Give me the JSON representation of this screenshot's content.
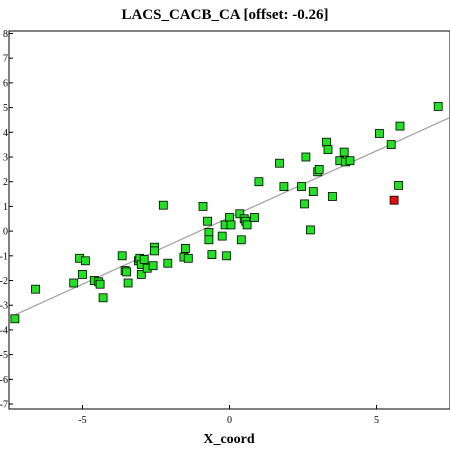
{
  "chart_data": {
    "type": "scatter",
    "title": "LACS_CACB_CA [offset: -0.26]",
    "xlabel": "X_coord",
    "ylabel": "",
    "xlim": [
      -7.5,
      7.5
    ],
    "ylim": [
      -7.2,
      8.1
    ],
    "x_ticks": [
      -5,
      0,
      5
    ],
    "x_tick_labels": [
      "-5",
      "0",
      "5"
    ],
    "y_ticks": [
      -7,
      -6,
      -5,
      -4,
      -3,
      -2,
      -1,
      0,
      1,
      2,
      3,
      4,
      5,
      6,
      7,
      8
    ],
    "y_tick_labels": [
      "-7",
      "-6",
      "-5",
      "-4",
      "-3",
      "-2",
      "-1",
      "0",
      "1",
      "2",
      "3",
      "4",
      "5",
      "6",
      "7",
      "8"
    ],
    "grid": false,
    "fit_line": {
      "x": [
        -7.5,
        7.5
      ],
      "y": [
        -3.5,
        4.6
      ],
      "color": "#a0a0a0"
    },
    "series": [
      {
        "color": "#22e022",
        "points": [
          [
            -7.3,
            -3.55
          ],
          [
            -6.6,
            -2.35
          ],
          [
            -5.3,
            -2.1
          ],
          [
            -5.1,
            -1.1
          ],
          [
            -5.0,
            -1.75
          ],
          [
            -4.9,
            -1.2
          ],
          [
            -4.6,
            -2.0
          ],
          [
            -4.45,
            -2.05
          ],
          [
            -4.4,
            -2.15
          ],
          [
            -4.3,
            -2.7
          ],
          [
            -3.65,
            -1.0
          ],
          [
            -3.55,
            -1.6
          ],
          [
            -3.5,
            -1.65
          ],
          [
            -3.45,
            -2.1
          ],
          [
            -3.1,
            -1.2
          ],
          [
            -3.05,
            -1.1
          ],
          [
            -3.0,
            -1.35
          ],
          [
            -3.0,
            -1.75
          ],
          [
            -2.9,
            -1.15
          ],
          [
            -2.8,
            -1.5
          ],
          [
            -2.6,
            -1.4
          ],
          [
            -2.55,
            -0.65
          ],
          [
            -2.55,
            -0.8
          ],
          [
            -2.25,
            1.05
          ],
          [
            -2.1,
            -1.3
          ],
          [
            -1.55,
            -1.05
          ],
          [
            -1.5,
            -0.7
          ],
          [
            -1.4,
            -1.1
          ],
          [
            -0.9,
            1.0
          ],
          [
            -0.75,
            0.4
          ],
          [
            -0.7,
            -0.05
          ],
          [
            -0.7,
            -0.35
          ],
          [
            -0.6,
            -0.95
          ],
          [
            -0.25,
            -0.2
          ],
          [
            -0.15,
            0.25
          ],
          [
            -0.1,
            -1.0
          ],
          [
            0.0,
            0.55
          ],
          [
            0.05,
            0.25
          ],
          [
            0.35,
            0.7
          ],
          [
            0.4,
            -0.35
          ],
          [
            0.5,
            0.5
          ],
          [
            0.55,
            0.4
          ],
          [
            0.6,
            0.25
          ],
          [
            0.85,
            0.55
          ],
          [
            1.0,
            2.0
          ],
          [
            1.7,
            2.75
          ],
          [
            1.85,
            1.8
          ],
          [
            2.45,
            1.8
          ],
          [
            2.55,
            1.1
          ],
          [
            2.6,
            3.0
          ],
          [
            2.75,
            0.05
          ],
          [
            2.85,
            1.6
          ],
          [
            3.0,
            2.4
          ],
          [
            3.05,
            2.5
          ],
          [
            3.3,
            3.6
          ],
          [
            3.35,
            3.3
          ],
          [
            3.5,
            1.4
          ],
          [
            3.75,
            2.85
          ],
          [
            3.9,
            3.2
          ],
          [
            3.95,
            2.8
          ],
          [
            4.1,
            2.85
          ],
          [
            5.1,
            3.95
          ],
          [
            5.5,
            3.5
          ],
          [
            5.75,
            1.85
          ],
          [
            5.8,
            4.25
          ],
          [
            7.1,
            5.05
          ]
        ]
      },
      {
        "color": "#e01010",
        "points": [
          [
            5.6,
            1.25
          ]
        ]
      }
    ]
  }
}
